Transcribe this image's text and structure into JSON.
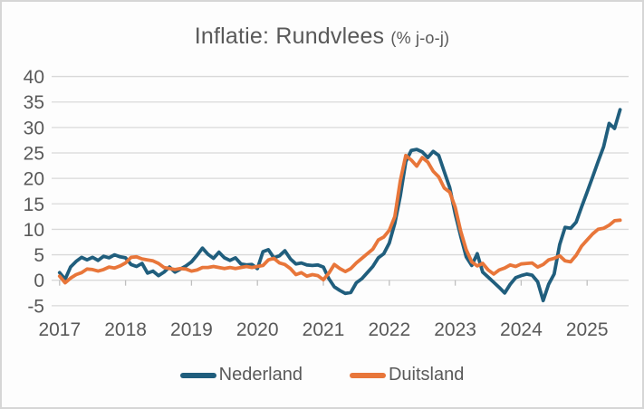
{
  "title": {
    "main": "Inflatie: Rundvlees",
    "suffix": "(% j-o-j)",
    "color": "#595959"
  },
  "colors": {
    "nederland": "#205e7d",
    "duitsland": "#e8763a",
    "gridline": "#d9d9d9",
    "tick": "#bfbfbf",
    "axis_text": "#595959",
    "frame_border": "#d6d6d6",
    "background": "#fdfdfd"
  },
  "legend": {
    "items": [
      {
        "label": "Nederland",
        "color": "#205e7d"
      },
      {
        "label": "Duitsland",
        "color": "#e8763a"
      }
    ]
  },
  "chart_data": {
    "type": "line",
    "title": "Inflatie: Rundvlees (% j-o-j)",
    "xlabel": "",
    "ylabel": "",
    "ylim": [
      -5,
      40
    ],
    "y_ticks": [
      40,
      35,
      30,
      25,
      20,
      15,
      10,
      5,
      0,
      -5
    ],
    "x_tick_labels": [
      "2017",
      "2018",
      "2019",
      "2020",
      "2021",
      "2022",
      "2023",
      "2024",
      "2025"
    ],
    "grid": true,
    "legend_position": "bottom",
    "x_frequency": "monthly",
    "x_range": "2017-01 to 2025-07",
    "series": [
      {
        "name": "Nederland",
        "color": "#205e7d",
        "values": [
          1.5,
          0.2,
          2.6,
          3.7,
          4.5,
          4.0,
          4.5,
          3.9,
          4.7,
          4.4,
          5.0,
          4.6,
          4.4,
          3.1,
          2.7,
          3.3,
          1.4,
          1.8,
          0.9,
          1.6,
          2.6,
          1.6,
          2.2,
          2.8,
          3.6,
          4.9,
          6.3,
          5.1,
          4.3,
          5.5,
          4.4,
          3.9,
          4.4,
          3.2,
          3.0,
          3.1,
          2.3,
          5.6,
          6.0,
          4.4,
          4.8,
          5.8,
          4.2,
          3.2,
          3.4,
          3.0,
          2.9,
          3.0,
          2.6,
          0.3,
          -1.3,
          -2.0,
          -2.6,
          -2.4,
          -0.5,
          0.3,
          1.5,
          2.7,
          4.4,
          5.2,
          7.3,
          11.2,
          16.5,
          23.3,
          25.5,
          25.7,
          25.2,
          24.1,
          25.3,
          24.5,
          21.3,
          18.2,
          13.0,
          8.6,
          4.6,
          2.9,
          5.2,
          1.6,
          0.6,
          -0.4,
          -1.4,
          -2.5,
          -0.8,
          0.5,
          0.9,
          1.2,
          1.0,
          -0.3,
          -4.0,
          -0.8,
          1.2,
          7.0,
          10.4,
          10.2,
          11.4,
          14.4,
          17.3,
          20.3,
          23.3,
          26.2,
          30.8,
          29.8,
          33.5
        ]
      },
      {
        "name": "Duitsland",
        "color": "#e8763a",
        "values": [
          0.8,
          -0.5,
          0.4,
          1.1,
          1.5,
          2.2,
          2.1,
          1.8,
          2.1,
          2.6,
          2.4,
          2.8,
          3.4,
          4.5,
          4.6,
          4.2,
          4.0,
          3.8,
          3.3,
          2.5,
          2.3,
          2.1,
          2.3,
          2.2,
          1.8,
          2.0,
          2.5,
          2.5,
          2.7,
          2.5,
          2.3,
          2.5,
          2.3,
          2.5,
          2.7,
          2.5,
          2.7,
          2.9,
          4.0,
          4.3,
          3.4,
          3.1,
          2.3,
          1.1,
          1.5,
          0.8,
          1.1,
          0.9,
          0.1,
          1.4,
          3.1,
          2.3,
          1.7,
          2.3,
          3.4,
          4.3,
          5.2,
          6.1,
          7.9,
          8.5,
          9.8,
          12.5,
          19.5,
          24.5,
          23.6,
          22.4,
          24.1,
          23.2,
          21.4,
          20.3,
          18.1,
          17.3,
          14.3,
          9.6,
          6.0,
          3.6,
          2.8,
          3.3,
          2.0,
          1.2,
          2.0,
          2.4,
          3.0,
          2.7,
          3.2,
          3.3,
          3.4,
          2.6,
          3.1,
          4.0,
          4.3,
          4.8,
          3.8,
          3.6,
          4.9,
          6.7,
          7.9,
          9.1,
          10.0,
          10.2,
          10.8,
          11.7,
          11.8
        ]
      }
    ]
  }
}
